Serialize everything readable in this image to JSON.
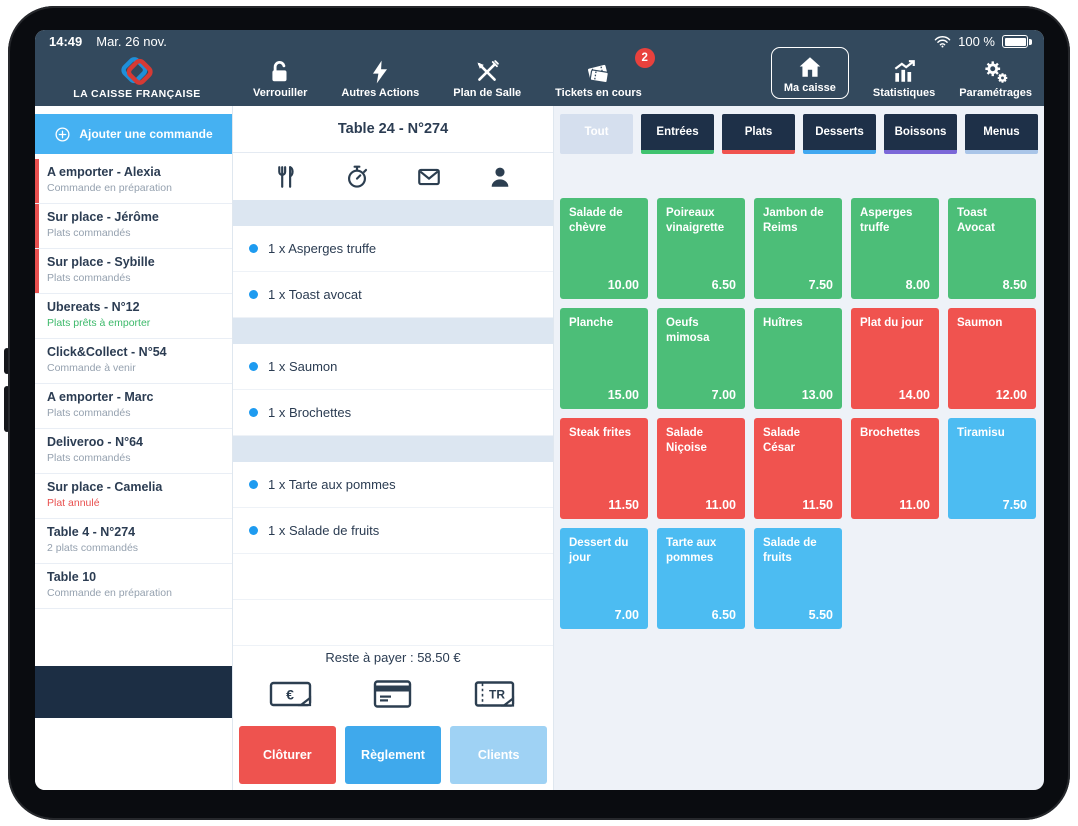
{
  "status": {
    "time": "14:49",
    "date": "Mar. 26 nov.",
    "battery": "100 %"
  },
  "topbar": {
    "brand": "LA CAISSE FRANÇAISE",
    "nav": [
      {
        "label": "Verrouiller",
        "icon": "lock-open-icon"
      },
      {
        "label": "Autres Actions",
        "icon": "lightning-icon"
      },
      {
        "label": "Plan de Salle",
        "icon": "cutlery-icon"
      },
      {
        "label": "Tickets en cours",
        "icon": "tickets-icon",
        "badge": "2"
      }
    ],
    "right": [
      {
        "label": "Ma caisse",
        "icon": "home-icon",
        "active": true
      },
      {
        "label": "Statistiques",
        "icon": "stats-icon"
      },
      {
        "label": "Paramétrages",
        "icon": "gears-icon"
      }
    ]
  },
  "sidebar": {
    "add_order_label": "Ajouter une commande",
    "orders": [
      {
        "title": "A emporter - Alexia",
        "subtitle": "Commande en préparation",
        "flag": true,
        "tone": "muted"
      },
      {
        "title": "Sur place - Jérôme",
        "subtitle": "Plats commandés",
        "flag": true,
        "tone": "muted"
      },
      {
        "title": "Sur place - Sybille",
        "subtitle": "Plats commandés",
        "flag": true,
        "tone": "muted"
      },
      {
        "title": "Ubereats - N°12",
        "subtitle": "Plats prêts à emporter",
        "flag": false,
        "tone": "green"
      },
      {
        "title": "Click&Collect - N°54",
        "subtitle": "Commande à venir",
        "flag": false,
        "tone": "muted"
      },
      {
        "title": "A emporter - Marc",
        "subtitle": "Plats commandés",
        "flag": false,
        "tone": "muted"
      },
      {
        "title": "Deliveroo - N°64",
        "subtitle": "Plats commandés",
        "flag": false,
        "tone": "muted"
      },
      {
        "title": "Sur place - Camelia",
        "subtitle": "Plat annulé",
        "flag": false,
        "tone": "red"
      },
      {
        "title": "Table 4 - N°274",
        "subtitle": "2 plats commandés",
        "flag": false,
        "tone": "muted"
      },
      {
        "title": "Table 10",
        "subtitle": "Commande en préparation",
        "flag": false,
        "tone": "muted"
      }
    ]
  },
  "ticket": {
    "title": "Table 24 - N°274",
    "header_icons": [
      "fork-knife-icon",
      "timer-icon",
      "envelope-icon",
      "person-icon"
    ],
    "course_sections": [
      {
        "items": [
          "1 x Asperges truffe",
          "1 x Toast avocat"
        ]
      },
      {
        "items": [
          "1 x Saumon",
          "1 x Brochettes"
        ]
      },
      {
        "items": [
          "1 x Tarte aux pommes",
          "1 x Salade de fruits"
        ]
      }
    ],
    "total_label": "Reste à payer : 58.50 €",
    "payment_icons": [
      "cash-icon",
      "card-icon",
      "ticket-restaurant-icon"
    ],
    "actions": [
      {
        "label": "Clôturer",
        "color": "#ee534f"
      },
      {
        "label": "Règlement",
        "color": "#3fa9ec"
      },
      {
        "label": "Clients",
        "color": "#9fd2f4"
      }
    ]
  },
  "catalog": {
    "tabs": [
      {
        "label": "Tout",
        "selected": true,
        "underline": "#d5dfee"
      },
      {
        "label": "Entrées",
        "selected": false,
        "underline": "#3fc36f"
      },
      {
        "label": "Plats",
        "selected": false,
        "underline": "#f0534f"
      },
      {
        "label": "Desserts",
        "selected": false,
        "underline": "#41a8f0"
      },
      {
        "label": "Boissons",
        "selected": false,
        "underline": "#7b68d8"
      },
      {
        "label": "Menus",
        "selected": false,
        "underline": "#a9c5e8"
      }
    ],
    "products": [
      {
        "name": "Salade de chèvre",
        "price": "10.00",
        "color": "#4cbe78"
      },
      {
        "name": "Poireaux vinaigrette",
        "price": "6.50",
        "color": "#4cbe78"
      },
      {
        "name": "Jambon de Reims",
        "price": "7.50",
        "color": "#4cbe78"
      },
      {
        "name": "Asperges truffe",
        "price": "8.00",
        "color": "#4cbe78"
      },
      {
        "name": "Toast Avocat",
        "price": "8.50",
        "color": "#4cbe78"
      },
      {
        "name": "Planche",
        "price": "15.00",
        "color": "#4cbe78"
      },
      {
        "name": "Oeufs mimosa",
        "price": "7.00",
        "color": "#4cbe78"
      },
      {
        "name": "Huîtres",
        "price": "13.00",
        "color": "#4cbe78"
      },
      {
        "name": "Plat du jour",
        "price": "14.00",
        "color": "#f0534f"
      },
      {
        "name": "Saumon",
        "price": "12.00",
        "color": "#f0534f"
      },
      {
        "name": "Steak frites",
        "price": "11.50",
        "color": "#f0534f"
      },
      {
        "name": "Salade Niçoise",
        "price": "11.00",
        "color": "#f0534f"
      },
      {
        "name": "Salade César",
        "price": "11.50",
        "color": "#f0534f"
      },
      {
        "name": "Brochettes",
        "price": "11.00",
        "color": "#f0534f"
      },
      {
        "name": "Tiramisu",
        "price": "7.50",
        "color": "#4cbcf2"
      },
      {
        "name": "Dessert du jour",
        "price": "7.00",
        "color": "#4cbcf2"
      },
      {
        "name": "Tarte aux pommes",
        "price": "6.50",
        "color": "#4cbcf2"
      },
      {
        "name": "Salade de fruits",
        "price": "5.50",
        "color": "#4cbcf2"
      }
    ]
  }
}
